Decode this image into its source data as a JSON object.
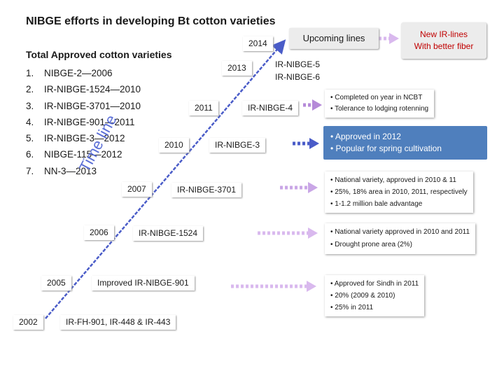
{
  "title": "NIBGE efforts in developing Bt cotton varieties",
  "approved": {
    "heading": "Total Approved cotton varieties",
    "items": [
      {
        "num": "1.",
        "text": "NIBGE-2—2006"
      },
      {
        "num": "2.",
        "text": "IR-NIBGE-1524—2010"
      },
      {
        "num": "3.",
        "text": "IR-NIBGE-3701—2010"
      },
      {
        "num": "4.",
        "text": "IR-NIBGE-901—2011"
      },
      {
        "num": "5.",
        "text": "IR-NIBGE-3—2012"
      },
      {
        "num": "6.",
        "text": "NIBGE-115—2012"
      },
      {
        "num": "7.",
        "text": "NN-3—2013"
      }
    ]
  },
  "timeline": {
    "label": "Time line",
    "years": {
      "y2002": "2002",
      "y2005": "2005",
      "y2006": "2006",
      "y2007": "2007",
      "y2010": "2010",
      "y2011": "2011",
      "y2013": "2013",
      "y2014": "2014"
    },
    "lines": {
      "l2002": "IR-FH-901, IR-448 & IR-443",
      "l2005": "Improved IR-NIBGE-901",
      "l2006": "IR-NIBGE-1524",
      "l2007": "IR-NIBGE-3701",
      "l2010": "IR-NIBGE-3",
      "l2011": "IR-NIBGE-4",
      "l2013": "IR-NIBGE-5",
      "l2013b": "IR-NIBGE-6"
    }
  },
  "upcoming": "Upcoming lines",
  "new_lines": {
    "line1": "New IR-lines",
    "line2": "With better fiber"
  },
  "details": {
    "d2011": [
      "Completed on year in NCBT",
      "Tolerance to lodging rotenning"
    ],
    "d2010": [
      "Approved in 2012",
      "Popular for spring cultivation"
    ],
    "d2007": [
      "National variety, approved in 2010 & 11",
      "25%, 18% area in 2010, 2011, respectively",
      "1-1.2 million bale advantage"
    ],
    "d2006": [
      "National variety approved in 2010 and 2011",
      "Drought prone area (2%)"
    ],
    "d2005": [
      "Approved for Sindh in 2011",
      "20% (2009 & 2010)",
      "25% in 2011"
    ]
  },
  "colors": {
    "timeline": "#5b6fd6",
    "arrow_faded": "#d9b9ee",
    "arrow_mid": "#b58ad8",
    "arrow_dark": "#7d4fb5",
    "highlight": "#4f7fbd",
    "new_lines_text": "#c00000"
  }
}
